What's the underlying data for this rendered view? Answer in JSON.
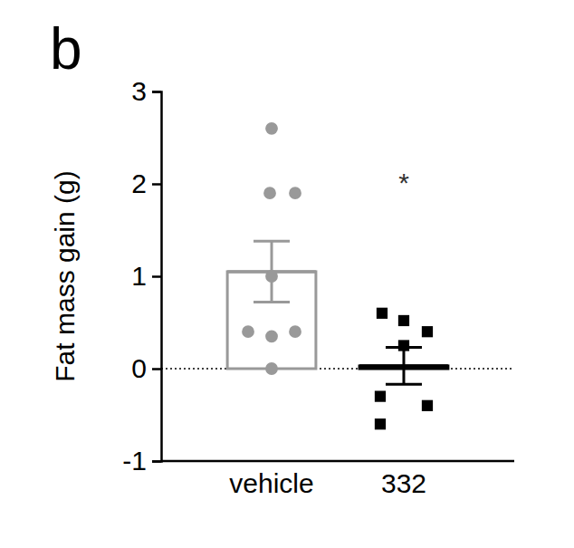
{
  "chart_data": {
    "type": "bar",
    "title": "b",
    "y_label": "Fat mass gain (g)",
    "categories": [
      "vehicle",
      "332"
    ],
    "values": [
      1.05,
      0.03
    ],
    "errors": [
      0.33,
      0.2
    ],
    "points": [
      [
        2.6,
        1.9,
        1.9,
        1.0,
        0.4,
        0.35,
        0.4,
        0.0
      ],
      [
        0.6,
        0.52,
        0.4,
        0.25,
        -0.3,
        -0.6,
        -0.4
      ]
    ],
    "colors": [
      "#999999",
      "#000000"
    ],
    "ylim": [
      -1,
      3
    ],
    "yticks": [
      -1,
      0,
      1,
      2,
      3
    ],
    "annotations": [
      {
        "text": "*",
        "x": 1,
        "y": 2.05
      }
    ]
  }
}
